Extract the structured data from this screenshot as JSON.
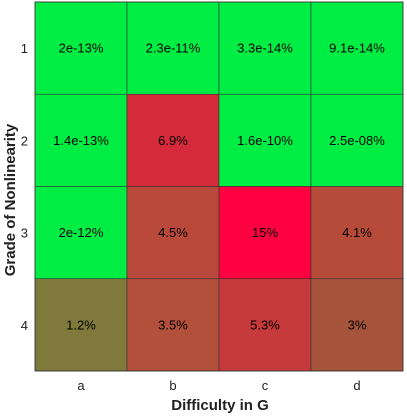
{
  "chart_data": {
    "type": "heatmap",
    "title": "",
    "xlabel": "Difficulty in G",
    "ylabel": "Grade of Nonlinearity",
    "x_categories": [
      "a",
      "b",
      "c",
      "d"
    ],
    "y_categories": [
      "1",
      "2",
      "3",
      "4"
    ],
    "cells": [
      [
        {
          "label": "2e-13%",
          "value": 2e-13,
          "color": "#00ee44"
        },
        {
          "label": "2.3e-11%",
          "value": 2.3e-11,
          "color": "#00ee44"
        },
        {
          "label": "3.3e-14%",
          "value": 3.3e-14,
          "color": "#00ee44"
        },
        {
          "label": "9.1e-14%",
          "value": 9.1e-14,
          "color": "#00ee44"
        }
      ],
      [
        {
          "label": "1.4e-13%",
          "value": 1.4e-13,
          "color": "#00ee44"
        },
        {
          "label": "6.9%",
          "value": 6.9,
          "color": "#d42a3a"
        },
        {
          "label": "1.6e-10%",
          "value": 1.6e-10,
          "color": "#00ee44"
        },
        {
          "label": "2.5e-08%",
          "value": 2.5e-08,
          "color": "#00ee44"
        }
      ],
      [
        {
          "label": "2e-12%",
          "value": 2e-12,
          "color": "#00ee44"
        },
        {
          "label": "4.5%",
          "value": 4.5,
          "color": "#b9493b"
        },
        {
          "label": "15%",
          "value": 15,
          "color": "#ff0040"
        },
        {
          "label": "4.1%",
          "value": 4.1,
          "color": "#b74b3a"
        }
      ],
      [
        {
          "label": "1.2%",
          "value": 1.2,
          "color": "#7f7a3c"
        },
        {
          "label": "3.5%",
          "value": 3.5,
          "color": "#b2503b"
        },
        {
          "label": "5.3%",
          "value": 5.3,
          "color": "#c63a3b"
        },
        {
          "label": "3%",
          "value": 3,
          "color": "#a6553c"
        }
      ]
    ],
    "grid": true,
    "legend": "none"
  }
}
